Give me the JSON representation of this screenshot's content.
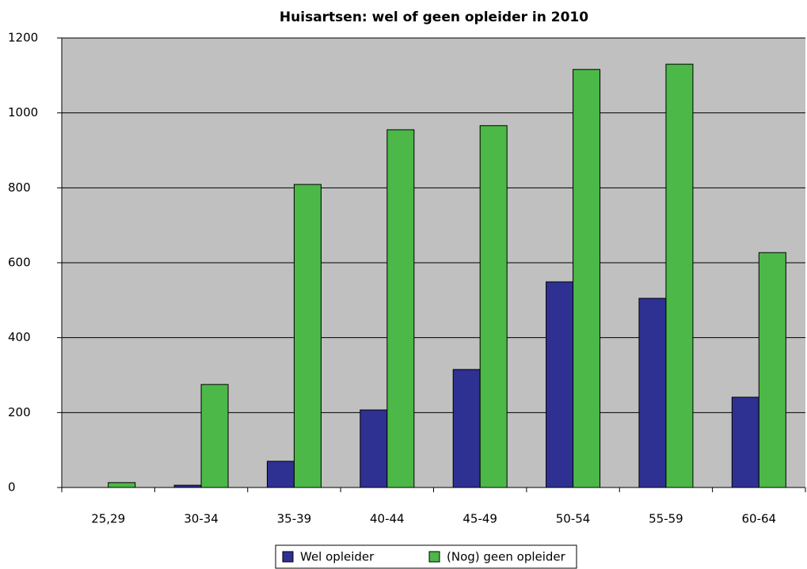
{
  "chart_data": {
    "type": "bar",
    "title": "Huisartsen: wel of geen opleider in 2010",
    "categories": [
      "25,29",
      "30-34",
      "35-39",
      "40-44",
      "45-49",
      "50-54",
      "55-59",
      "60-64"
    ],
    "series": [
      {
        "name": "Wel opleider",
        "color": "#2e3192",
        "values": [
          0,
          6,
          70,
          207,
          315,
          549,
          505,
          241
        ]
      },
      {
        "name": "(Nog) geen opleider",
        "color": "#4cb848",
        "values": [
          13,
          275,
          809,
          955,
          966,
          1116,
          1130,
          627
        ]
      }
    ],
    "ylim": [
      0,
      1200
    ],
    "yticks": [
      0,
      200,
      400,
      600,
      800,
      1000,
      1200
    ],
    "grid": true,
    "legend": "bottom"
  }
}
